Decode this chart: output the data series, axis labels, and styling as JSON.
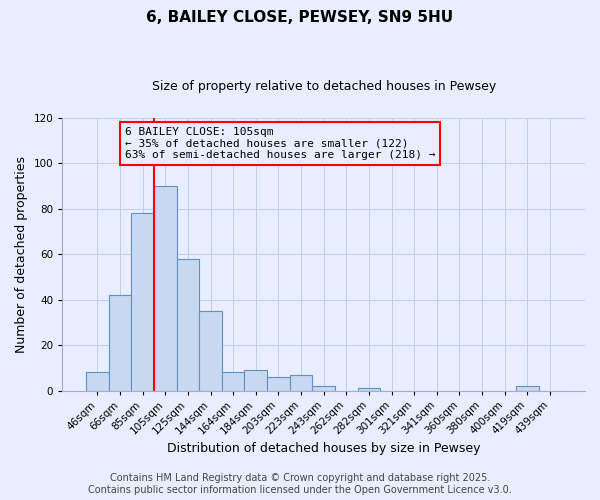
{
  "title": "6, BAILEY CLOSE, PEWSEY, SN9 5HU",
  "subtitle": "Size of property relative to detached houses in Pewsey",
  "xlabel": "Distribution of detached houses by size in Pewsey",
  "ylabel": "Number of detached properties",
  "categories": [
    "46sqm",
    "66sqm",
    "85sqm",
    "105sqm",
    "125sqm",
    "144sqm",
    "164sqm",
    "184sqm",
    "203sqm",
    "223sqm",
    "243sqm",
    "262sqm",
    "282sqm",
    "301sqm",
    "321sqm",
    "341sqm",
    "360sqm",
    "380sqm",
    "400sqm",
    "419sqm",
    "439sqm"
  ],
  "values": [
    8,
    42,
    78,
    90,
    58,
    35,
    8,
    9,
    6,
    7,
    2,
    0,
    1,
    0,
    0,
    0,
    0,
    0,
    0,
    2,
    0
  ],
  "bar_color": "#c8d8f0",
  "bar_edge_color": "#6090c8",
  "vline_index": 3,
  "vline_color": "red",
  "ylim": [
    0,
    120
  ],
  "yticks": [
    0,
    20,
    40,
    60,
    80,
    100,
    120
  ],
  "annotation_title": "6 BAILEY CLOSE: 105sqm",
  "annotation_line1": "← 35% of detached houses are smaller (122)",
  "annotation_line2": "63% of semi-detached houses are larger (218) →",
  "annotation_box_color": "red",
  "footer1": "Contains HM Land Registry data © Crown copyright and database right 2025.",
  "footer2": "Contains public sector information licensed under the Open Government Licence v3.0.",
  "bg_color": "#e8eeff",
  "grid_color": "#c0d0e8",
  "title_fontsize": 11,
  "subtitle_fontsize": 9,
  "label_fontsize": 9,
  "tick_fontsize": 7.5,
  "footer_fontsize": 7,
  "annotation_fontsize": 8
}
